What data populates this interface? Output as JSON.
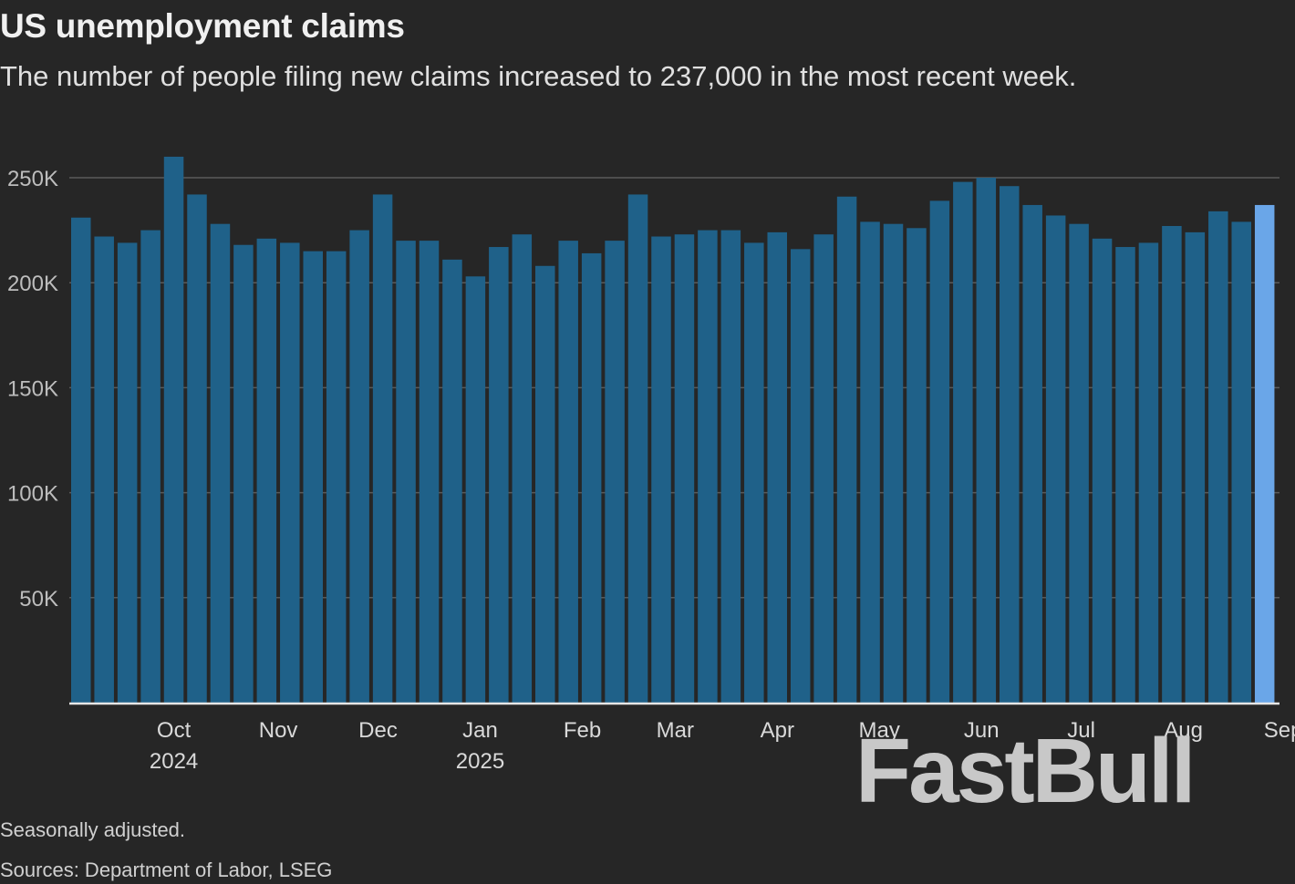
{
  "header": {
    "title": "US unemployment claims",
    "subtitle": "The number of people filing new claims increased to 237,000 in the most recent week."
  },
  "footer": {
    "note": "Seasonally adjusted.",
    "source": "Sources: Department of Labor, LSEG"
  },
  "watermark": {
    "text": "FastBull"
  },
  "colors": {
    "bar": "#1f6189",
    "bar_latest": "#6aa6e8",
    "gridline": "#5a5a5a",
    "axis": "#e6e6e6",
    "tick_label": "#bdbdbd",
    "x_label": "#d9d9d9"
  },
  "chart_data": {
    "type": "bar",
    "ylim": [
      0,
      260000
    ],
    "y_ticks": [
      50000,
      100000,
      150000,
      200000,
      250000
    ],
    "y_tick_labels": [
      "50K",
      "100K",
      "150K",
      "200K",
      "250K"
    ],
    "x_tick_labels": [
      {
        "month": "Oct",
        "year": "2024",
        "bar_index": 4
      },
      {
        "month": "Nov",
        "year": "",
        "bar_index": 8.5
      },
      {
        "month": "Dec",
        "year": "",
        "bar_index": 12.8
      },
      {
        "month": "Jan",
        "year": "2025",
        "bar_index": 17.2
      },
      {
        "month": "Feb",
        "year": "",
        "bar_index": 21.6
      },
      {
        "month": "Mar",
        "year": "",
        "bar_index": 25.6
      },
      {
        "month": "Apr",
        "year": "",
        "bar_index": 30
      },
      {
        "month": "May",
        "year": "",
        "bar_index": 34.4
      },
      {
        "month": "Jun",
        "year": "",
        "bar_index": 38.8
      },
      {
        "month": "Jul",
        "year": "",
        "bar_index": 43.1
      },
      {
        "month": "Aug",
        "year": "",
        "bar_index": 47.5
      },
      {
        "month": "Sep",
        "year": "",
        "bar_index": 51.8
      }
    ],
    "values": [
      231000,
      222000,
      219000,
      225000,
      260000,
      242000,
      228000,
      218000,
      221000,
      219000,
      215000,
      215000,
      225000,
      242000,
      220000,
      220000,
      211000,
      203000,
      217000,
      223000,
      208000,
      220000,
      214000,
      220000,
      242000,
      222000,
      223000,
      225000,
      225000,
      219000,
      224000,
      216000,
      223000,
      241000,
      229000,
      228000,
      226000,
      239000,
      248000,
      250000,
      246000,
      237000,
      232000,
      228000,
      221000,
      217000,
      219000,
      227000,
      224000,
      234000,
      229000,
      237000
    ],
    "highlight_last": true,
    "grid": true
  }
}
